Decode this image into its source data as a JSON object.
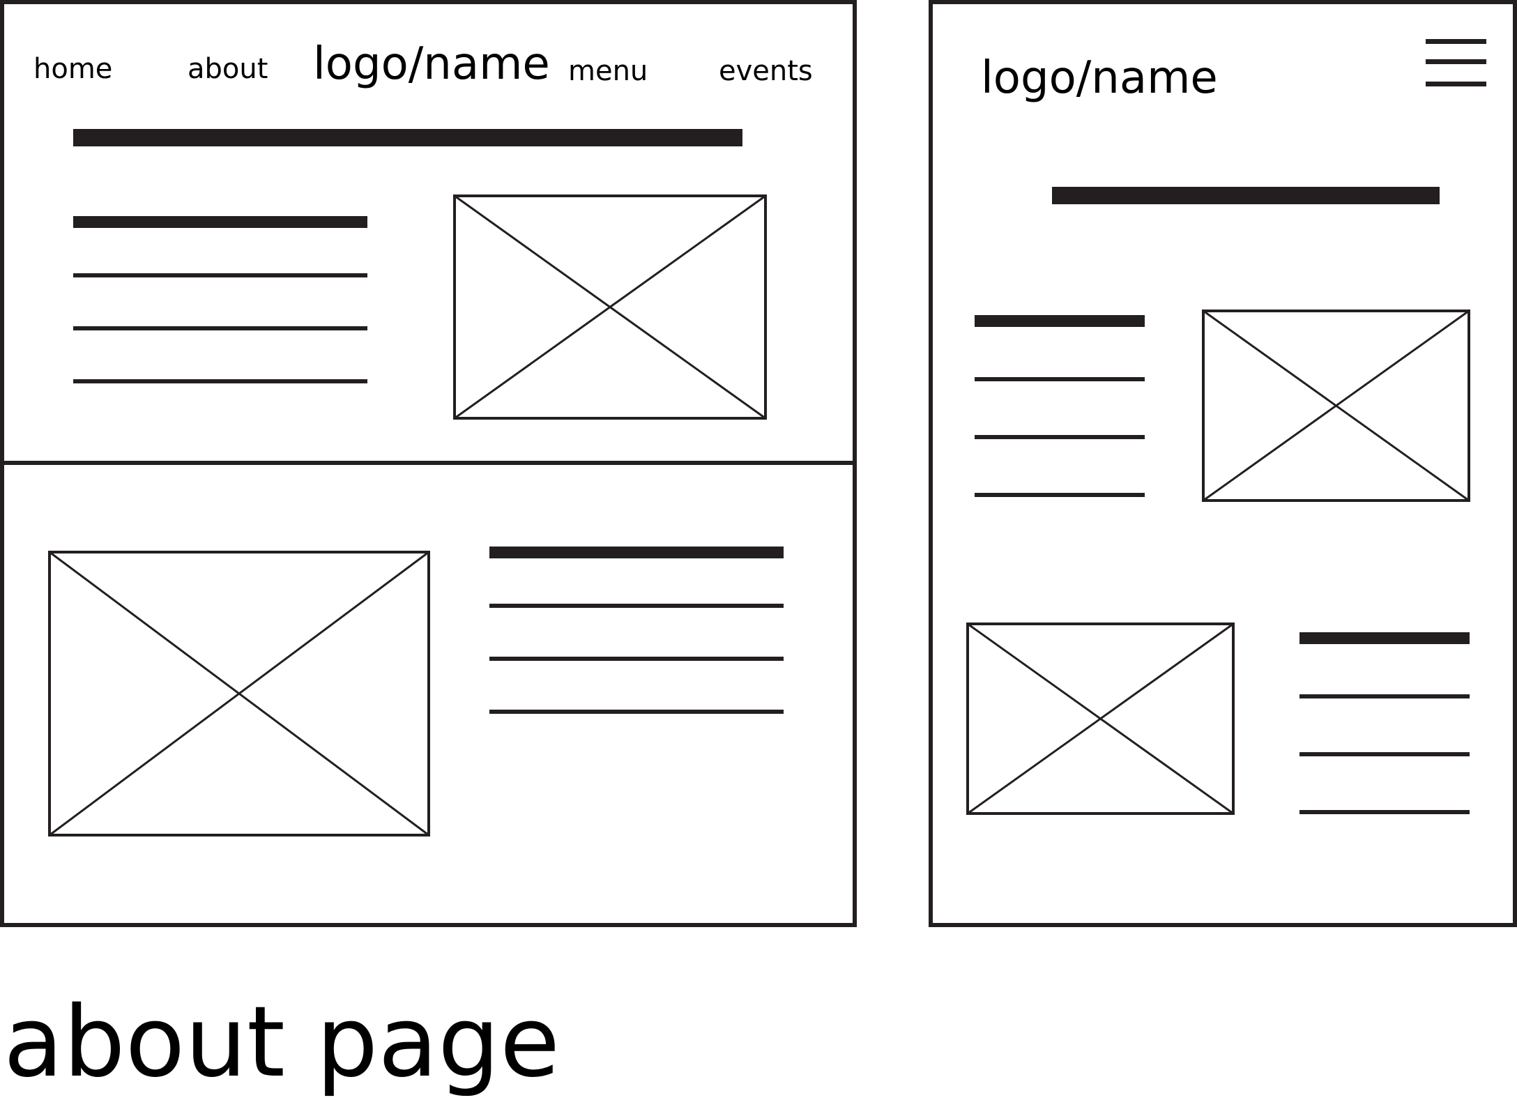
{
  "desktop": {
    "nav": {
      "home": "home",
      "about": "about",
      "logo": "logo/name",
      "menu": "menu",
      "events": "events"
    }
  },
  "mobile": {
    "logo": "logo/name",
    "menu_icon": "hamburger-menu-icon"
  },
  "caption": "about page",
  "colors": {
    "stroke": "#231f20",
    "background": "#ffffff"
  }
}
